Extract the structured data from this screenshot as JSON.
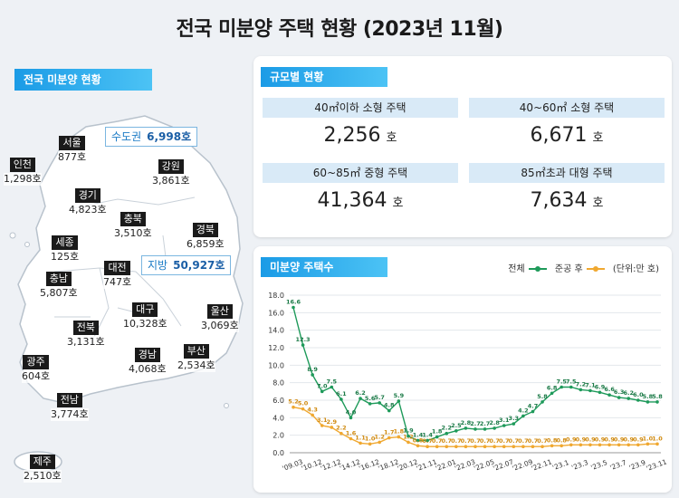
{
  "title": "전국 미분양 주택 현황 (2023년 11월)",
  "map_section": {
    "label": "전국 미분양 현황",
    "capital_callout": {
      "label": "수도권",
      "value": "6,998호"
    },
    "local_callout": {
      "label": "지방",
      "value": "50,927호"
    },
    "regions": [
      {
        "name": "서울",
        "value": "877호"
      },
      {
        "name": "인천",
        "value": "1,298호"
      },
      {
        "name": "경기",
        "value": "4,823호"
      },
      {
        "name": "강원",
        "value": "3,861호"
      },
      {
        "name": "충북",
        "value": "3,510호"
      },
      {
        "name": "경북",
        "value": "6,859호"
      },
      {
        "name": "세종",
        "value": "125호"
      },
      {
        "name": "대전",
        "value": "747호"
      },
      {
        "name": "충남",
        "value": "5,807호"
      },
      {
        "name": "대구",
        "value": "10,328호"
      },
      {
        "name": "울산",
        "value": "3,069호"
      },
      {
        "name": "전북",
        "value": "3,131호"
      },
      {
        "name": "경남",
        "value": "4,068호"
      },
      {
        "name": "부산",
        "value": "2,534호"
      },
      {
        "name": "광주",
        "value": "604호"
      },
      {
        "name": "전남",
        "value": "3,774호"
      },
      {
        "name": "제주",
        "value": "2,510호"
      }
    ]
  },
  "size_section": {
    "label": "규모별 현황",
    "cells": [
      {
        "header": "40㎡이하 소형 주택",
        "value": "2,256",
        "unit": "호"
      },
      {
        "header": "40~60㎡ 소형 주택",
        "value": "6,671",
        "unit": "호"
      },
      {
        "header": "60~85㎡ 중형 주택",
        "value": "41,364",
        "unit": "호"
      },
      {
        "header": "85㎡초과 대형 주택",
        "value": "7,634",
        "unit": "호"
      }
    ]
  },
  "chart_section": {
    "label": "미분양 주택수",
    "legend": {
      "total": "전체",
      "completed": "준공 후",
      "unit": "(단위:만 호)"
    }
  },
  "colors": {
    "total": "#1e9a5a",
    "completed": "#f0a830",
    "accent": "#1b9be6"
  },
  "chart_data": {
    "type": "line",
    "ylim": [
      0,
      18
    ],
    "yticks": [
      "0.0",
      "2.0",
      "4.0",
      "6.0",
      "8.0",
      "10.0",
      "12.0",
      "14.0",
      "16.0",
      "18.0"
    ],
    "x_tick_labels": [
      "'09.03",
      "'10.12",
      "'12.12",
      "'14.12",
      "'16.12",
      "'18.12",
      "'20.12",
      "'21.11",
      "'22.01",
      "'22.03",
      "'22.05",
      "'22.07",
      "'22.09",
      "'22.11",
      "'23.1",
      "'23.3",
      "'23.5",
      "'23.7",
      "'23.9",
      "'23.11"
    ],
    "series": [
      {
        "name": "전체",
        "values": [
          16.6,
          12.3,
          8.9,
          7.0,
          7.5,
          6.1,
          4.0,
          6.2,
          5.6,
          5.7,
          4.8,
          5.9,
          1.9,
          1.4,
          1.4,
          1.8,
          2.2,
          2.5,
          2.8,
          2.7,
          2.7,
          2.8,
          3.1,
          3.3,
          4.2,
          4.7,
          5.8,
          6.8,
          7.5,
          7.5,
          7.2,
          7.1,
          6.9,
          6.6,
          6.3,
          6.2,
          6.0,
          5.8,
          5.8
        ],
        "labels": [
          "16.6",
          "12.3",
          "8.9",
          "7.0",
          "7.5",
          "6.1",
          "4.0",
          "6.2",
          "5.6",
          "5.7",
          "4.8",
          "5.9",
          "1.9",
          "1.4",
          "1.4",
          "1.8",
          "2.2",
          "2.5",
          "2.8",
          "2.7",
          "2.7",
          "2.8",
          "3.1",
          "3.3",
          "4.2",
          "4.7",
          "5.8",
          "6.8",
          "7.5",
          "7.5",
          "7.2",
          "7.1",
          "6.9",
          "6.6",
          "6.3",
          "6.2",
          "6.0",
          "5.8",
          "5.8"
        ]
      },
      {
        "name": "준공 후",
        "values": [
          5.2,
          5.0,
          4.3,
          3.1,
          2.9,
          2.2,
          1.6,
          1.1,
          1.0,
          1.2,
          1.7,
          1.8,
          1.2,
          0.8,
          0.7,
          0.7,
          0.7,
          0.7,
          0.7,
          0.7,
          0.7,
          0.7,
          0.7,
          0.7,
          0.7,
          0.7,
          0.7,
          0.8,
          0.8,
          0.9,
          0.9,
          0.9,
          0.9,
          0.9,
          0.9,
          0.9,
          0.9,
          1.0,
          1.0
        ],
        "labels": [
          "5.2",
          "5.0",
          "4.3",
          "3.1",
          "2.9",
          "2.2",
          "1.6",
          "1.1",
          "1.0",
          "1.2",
          "1.7",
          "1.8",
          "1.2",
          "0.8",
          "0.7",
          "0.7",
          "0.7",
          "0.7",
          "0.7",
          "0.7",
          "0.7",
          "0.7",
          "0.7",
          "0.7",
          "0.7",
          "0.7",
          "0.7",
          "0.8",
          "0.8",
          "0.9",
          "0.9",
          "0.9",
          "0.9",
          "0.9",
          "0.9",
          "0.9",
          "0.9",
          "1.0",
          "1.0"
        ]
      }
    ]
  }
}
